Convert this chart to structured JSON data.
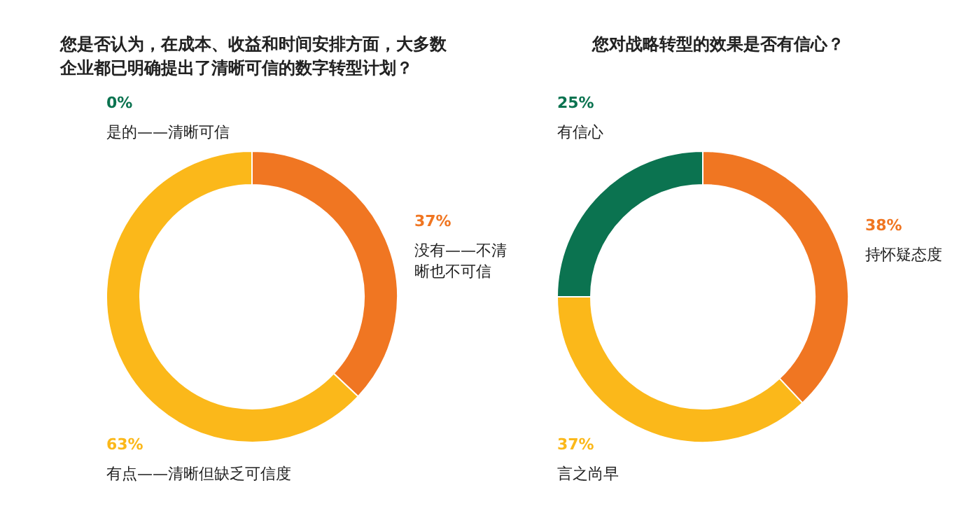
{
  "chart_data": [
    {
      "type": "donut",
      "title": "您是否认为，在成本、收益和时间安排方面，大多数企业都已明确提出了清晰可信的数字转型计划？",
      "categories": [
        "没有——不清晰也不可信",
        "有点——清晰但缺乏可信度",
        "是的——清晰可信"
      ],
      "values": [
        37,
        63,
        0
      ],
      "value_labels": [
        "37%",
        "63%",
        "0%"
      ],
      "colors": [
        "#f07622",
        "#fbb81a",
        "#0b7350"
      ]
    },
    {
      "type": "donut",
      "title": "您对战略转型的效果是否有信心？",
      "categories": [
        "持怀疑态度",
        "言之尚早",
        "有信心"
      ],
      "values": [
        38,
        37,
        25
      ],
      "value_labels": [
        "38%",
        "37%",
        "25%"
      ],
      "colors": [
        "#f07622",
        "#fbb81a",
        "#0b7350"
      ]
    }
  ]
}
